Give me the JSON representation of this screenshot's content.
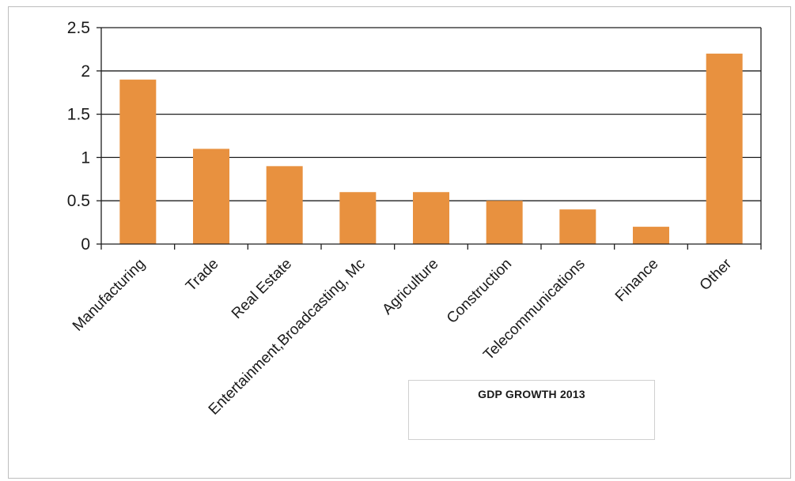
{
  "chart_data": {
    "type": "bar",
    "categories": [
      "Manufacturing",
      "Trade",
      "Real Estate",
      "Entertainment,Broadcasting, Mc",
      "Agriculture",
      "Construction",
      "Telecommunications",
      "Finance",
      "Other"
    ],
    "values": [
      1.9,
      1.1,
      0.9,
      0.6,
      0.6,
      0.5,
      0.4,
      0.2,
      2.2
    ],
    "title": "GDP GROWTH 2013",
    "xlabel": "",
    "ylabel": "",
    "ylim": [
      0,
      2.5
    ],
    "yticks": [
      0,
      0.5,
      1,
      1.5,
      2,
      2.5
    ],
    "ytick_labels": [
      "0",
      "0.5",
      "1",
      "1.5",
      "2",
      "2.5"
    ],
    "grid": true,
    "bar_color": "#E8913F",
    "legend_placement": "bottom-right"
  }
}
